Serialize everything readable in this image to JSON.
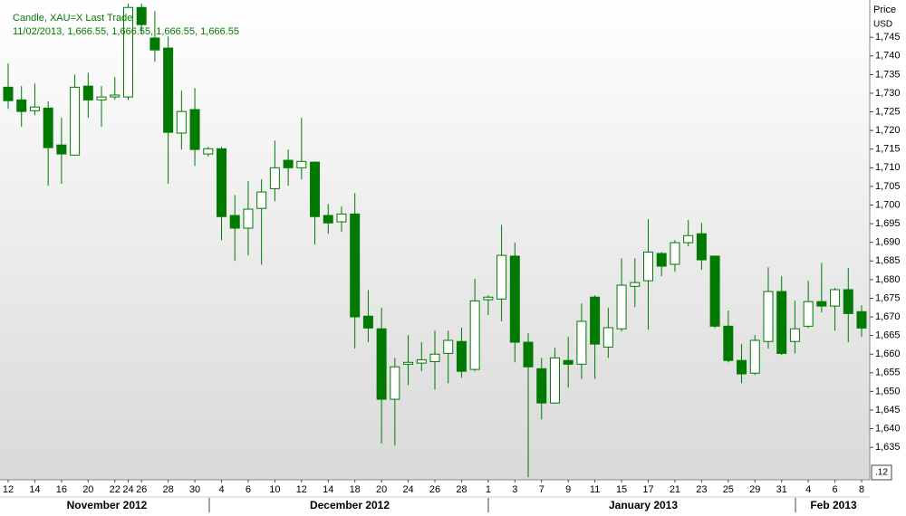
{
  "chart_data": {
    "type": "candlestick",
    "legend_title": "Candle, XAU=X Last Trade",
    "legend_values": "11/02/2013, 1,666.55, 1,666.55, 1,666.55, 1,666.55",
    "y_axis_title": "Price",
    "y_axis_unit": "USD",
    "axis_badge": ".12",
    "color": "#007a00",
    "grid": false,
    "categories": [
      "12",
      null,
      "14",
      null,
      "16",
      null,
      "20",
      null,
      "22",
      "24",
      "26",
      null,
      "28",
      null,
      "30",
      null,
      "4",
      null,
      "6",
      null,
      "10",
      null,
      "12",
      null,
      "14",
      null,
      "18",
      null,
      "20",
      null,
      "24",
      null,
      "26",
      null,
      "28",
      null,
      "1",
      null,
      "3",
      null,
      "7",
      null,
      "9",
      null,
      "11",
      null,
      "15",
      null,
      "17",
      null,
      "21",
      null,
      "23",
      null,
      "25",
      null,
      "29",
      null,
      "31",
      null,
      "4",
      null,
      "6",
      null,
      "8"
    ],
    "months": [
      "November 2012",
      "December 2012",
      "January 2013",
      "Feb 2013"
    ],
    "open": [
      1731.6,
      1728.2,
      1725.3,
      1726,
      1716.1,
      1713.4,
      1731.9,
      1728.2,
      1729,
      1729,
      1753,
      1744.8,
      1742.1,
      1719.3,
      1725.6,
      1713.7,
      1715.1,
      1697.2,
      1693.8,
      1699.1,
      1704.4,
      1712,
      1710,
      1711.5,
      1697.2,
      1695.5,
      1697.6,
      1670.2,
      1666.8,
      1647.9,
      1657.3,
      1657.6,
      1658,
      1660.2,
      1663.4,
      1655.9,
      1674.6,
      1674.8,
      1686.3,
      1663.2,
      1656.1,
      1646.9,
      1658.3,
      1657.3,
      1675.3,
      1661.9,
      1666.8,
      1678.2,
      1679.7,
      1687,
      1684.1,
      1689.9,
      1692.3,
      1686.3,
      1667.5,
      1658.3,
      1654.9,
      1663.4,
      1676.8,
      1663.4,
      1667.5,
      1674.1,
      1672.9,
      1677.3,
      1671.4
    ],
    "high": [
      1738,
      1731.9,
      1732.6,
      1727.8,
      1723.4,
      1735,
      1735.5,
      1731.9,
      1734.3,
      1754,
      1754,
      1752,
      1745.2,
      1730.7,
      1731.4,
      1715.6,
      1715.6,
      1702.7,
      1706.4,
      1706.9,
      1717.3,
      1714.9,
      1723.4,
      1711.7,
      1700.3,
      1699.6,
      1703.2,
      1677.2,
      1672.4,
      1659,
      1665.1,
      1663.2,
      1666.3,
      1666.3,
      1667.1,
      1680.2,
      1675.8,
      1694.7,
      1689.9,
      1665.6,
      1659,
      1661.7,
      1664.6,
      1673.6,
      1675.8,
      1672.4,
      1685.7,
      1685.7,
      1696.2,
      1687.4,
      1690.6,
      1696,
      1695.2,
      1686.3,
      1671.7,
      1662.7,
      1665.1,
      1683.3,
      1680.9,
      1674.3,
      1679.7,
      1684.5,
      1677.8,
      1683.1,
      1673.1
    ],
    "low": [
      1725.8,
      1721,
      1724.1,
      1705.2,
      1705.7,
      1713.4,
      1723.4,
      1721,
      1728.2,
      1728.2,
      1746,
      1738.4,
      1705.7,
      1714.9,
      1710.5,
      1713,
      1690.6,
      1685,
      1686.5,
      1684,
      1701,
      1705.2,
      1706.9,
      1689.4,
      1692.3,
      1692.8,
      1661.5,
      1663.2,
      1636,
      1635.5,
      1651.7,
      1655.4,
      1650.5,
      1652.2,
      1653.7,
      1655.4,
      1670.5,
      1668.8,
      1657.8,
      1627,
      1642.5,
      1646.7,
      1651,
      1653.4,
      1653.4,
      1659,
      1666.1,
      1672.6,
      1666.6,
      1680.9,
      1682.1,
      1688.9,
      1682.6,
      1667,
      1657.8,
      1652.2,
      1654.4,
      1661.5,
      1659.8,
      1660.2,
      1667,
      1671.2,
      1666.3,
      1663.2,
      1664.6
    ],
    "close": [
      1728,
      1725.1,
      1726.3,
      1715.4,
      1713.7,
      1731.6,
      1728.2,
      1729,
      1729.5,
      1753,
      1748.4,
      1741.6,
      1719.5,
      1725.1,
      1714.9,
      1715.1,
      1696.9,
      1693.8,
      1698.9,
      1703.5,
      1710,
      1710,
      1711.7,
      1696.9,
      1695.2,
      1697.6,
      1670,
      1667,
      1647.9,
      1656.6,
      1657.8,
      1658.5,
      1660,
      1663.7,
      1655.4,
      1674.3,
      1675.3,
      1686.5,
      1663.2,
      1656.6,
      1646.9,
      1659,
      1657.3,
      1668.8,
      1662.7,
      1667.1,
      1678.5,
      1679.2,
      1687.4,
      1683.6,
      1689.9,
      1691.8,
      1685.3,
      1667.5,
      1658.3,
      1654.7,
      1663.7,
      1676.8,
      1660.2,
      1666.8,
      1674.1,
      1672.9,
      1677.3,
      1670.9,
      1667
    ],
    "ylim": [
      1626.3,
      1755
    ],
    "yticks": [
      {
        "value": 1635,
        "label": "1,635"
      },
      {
        "value": 1640,
        "label": "1,640"
      },
      {
        "value": 1645,
        "label": "1,645"
      },
      {
        "value": 1650,
        "label": "1,650"
      },
      {
        "value": 1655,
        "label": "1,655"
      },
      {
        "value": 1660,
        "label": "1,660"
      },
      {
        "value": 1665,
        "label": "1,665"
      },
      {
        "value": 1670,
        "label": "1,670"
      },
      {
        "value": 1675,
        "label": "1,675"
      },
      {
        "value": 1680,
        "label": "1,680"
      },
      {
        "value": 1685,
        "label": "1,685"
      },
      {
        "value": 1690,
        "label": "1,690"
      },
      {
        "value": 1695,
        "label": "1,695"
      },
      {
        "value": 1700,
        "label": "1,700"
      },
      {
        "value": 1705,
        "label": "1,705"
      },
      {
        "value": 1710,
        "label": "1,710"
      },
      {
        "value": 1715,
        "label": "1,715"
      },
      {
        "value": 1720,
        "label": "1,720"
      },
      {
        "value": 1725,
        "label": "1,725"
      },
      {
        "value": 1730,
        "label": "1,730"
      },
      {
        "value": 1735,
        "label": "1,735"
      },
      {
        "value": 1740,
        "label": "1,740"
      },
      {
        "value": 1745,
        "label": "1,745"
      }
    ]
  }
}
